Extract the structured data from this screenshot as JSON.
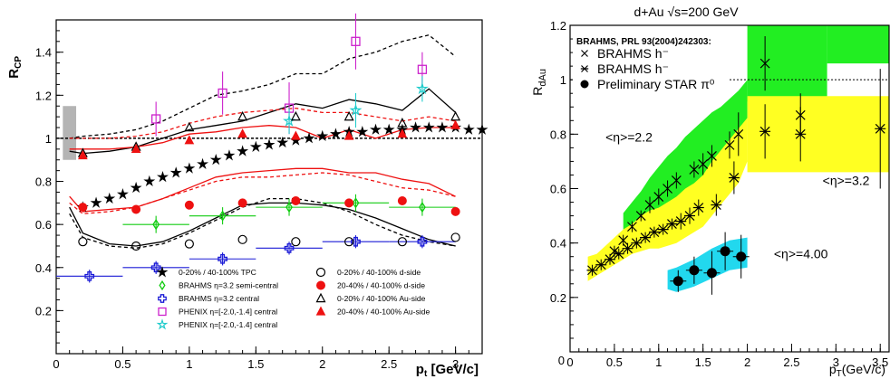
{
  "chart_data": [
    {
      "type": "scatter",
      "title": "",
      "xlabel": "p_t [GeV/c]",
      "ylabel": "R_CP",
      "xlim": [
        0,
        3.2
      ],
      "ylim": [
        0,
        1.55
      ],
      "xticks": [
        0,
        0.5,
        1,
        1.5,
        2,
        2.5,
        3
      ],
      "yticks": [
        0.2,
        0.4,
        0.6,
        0.8,
        1,
        1.2,
        1.4
      ],
      "xtick_labels": [
        "0",
        "0.5",
        "1",
        "1.5",
        "2",
        "2.5",
        "3"
      ],
      "ytick_labels": [
        "0.2",
        "0.4",
        "0.6",
        "0.8",
        "1",
        "1.2",
        "1.4"
      ],
      "reference_line": 1.0,
      "systematic_band": {
        "x": [
          0.05,
          0.15
        ],
        "y": [
          0.9,
          1.15
        ],
        "color": "#b4b4b4"
      },
      "series": [
        {
          "name": "0-20% / 40-100% TPC",
          "marker": "star",
          "color": "#000000",
          "x": [
            0.2,
            0.3,
            0.4,
            0.5,
            0.6,
            0.7,
            0.8,
            0.9,
            1.0,
            1.1,
            1.2,
            1.3,
            1.4,
            1.5,
            1.6,
            1.7,
            1.8,
            1.9,
            2.0,
            2.1,
            2.2,
            2.3,
            2.4,
            2.5,
            2.6,
            2.7,
            2.8,
            2.9,
            3.0,
            3.1,
            3.2
          ],
          "y": [
            0.68,
            0.7,
            0.72,
            0.74,
            0.77,
            0.8,
            0.82,
            0.84,
            0.86,
            0.88,
            0.9,
            0.92,
            0.94,
            0.96,
            0.97,
            0.98,
            0.99,
            1.0,
            1.01,
            1.02,
            1.03,
            1.03,
            1.04,
            1.04,
            1.04,
            1.05,
            1.05,
            1.05,
            1.05,
            1.04,
            1.04
          ]
        },
        {
          "name": "BRAHMS η=3.2 semi-central",
          "marker": "open-diamond",
          "color": "#11cc11",
          "x": [
            0.75,
            1.25,
            1.75,
            2.25,
            2.75
          ],
          "y": [
            0.6,
            0.64,
            0.68,
            0.7,
            0.68
          ],
          "xerr": 0.25,
          "yerr": 0.04
        },
        {
          "name": "BRAHMS η=3.2 central",
          "marker": "open-cross",
          "color": "#1a1ad6",
          "x": [
            0.25,
            0.75,
            1.25,
            1.75,
            2.25,
            2.75
          ],
          "y": [
            0.36,
            0.4,
            0.44,
            0.49,
            0.52,
            0.52
          ],
          "xerr": 0.25,
          "yerr": 0.03
        },
        {
          "name": "PHENIX η=[-2.0,-1.4] central",
          "marker": "open-square",
          "color": "#cc22cc",
          "x": [
            0.75,
            1.25,
            1.75,
            2.25,
            2.75
          ],
          "y": [
            1.09,
            1.21,
            1.14,
            1.45,
            1.32
          ],
          "yerr": [
            0.08,
            0.1,
            0.12,
            0.13,
            0.08
          ]
        },
        {
          "name": "PHENIX η=[-2.0,-1.4] central",
          "marker": "open-star",
          "color": "#22cccc",
          "x": [
            1.75,
            2.25,
            2.75
          ],
          "y": [
            1.08,
            1.13,
            1.23
          ],
          "yerr": [
            0.06,
            0.08,
            0.06
          ]
        },
        {
          "name": "0-20% / 40-100% d-side",
          "marker": "open-circle",
          "color": "#000000",
          "x": [
            0.2,
            0.6,
            1.0,
            1.4,
            1.8,
            2.2,
            2.6,
            3.0
          ],
          "y": [
            0.52,
            0.5,
            0.51,
            0.53,
            0.52,
            0.52,
            0.52,
            0.54
          ]
        },
        {
          "name": "20-40% / 40-100% d-side",
          "marker": "filled-circle",
          "color": "#ee1111",
          "x": [
            0.2,
            0.6,
            1.0,
            1.4,
            1.8,
            2.2,
            2.6,
            3.0
          ],
          "y": [
            0.68,
            0.67,
            0.69,
            0.7,
            0.71,
            0.7,
            0.71,
            0.66
          ]
        },
        {
          "name": "0-20% / 40-100% Au-side",
          "marker": "open-triangle",
          "color": "#000000",
          "x": [
            0.2,
            0.6,
            1.0,
            1.4,
            1.8,
            2.2,
            2.6,
            3.0
          ],
          "y": [
            0.93,
            0.96,
            1.05,
            1.1,
            1.1,
            1.1,
            1.07,
            1.1
          ]
        },
        {
          "name": "20-40% / 40-100% Au-side",
          "marker": "filled-triangle",
          "color": "#ee1111",
          "x": [
            0.2,
            0.6,
            1.0,
            1.4,
            1.8,
            2.2,
            2.6,
            3.0
          ],
          "y": [
            0.92,
            0.95,
            0.99,
            1.02,
            1.01,
            1.01,
            1.02,
            1.06
          ]
        }
      ],
      "curves": [
        {
          "style": "solid",
          "color": "#000000",
          "x": [
            0.1,
            0.2,
            0.4,
            0.6,
            0.8,
            1.0,
            1.2,
            1.4,
            1.6,
            1.8,
            2.0,
            2.2,
            2.4,
            2.6,
            2.8,
            3.0
          ],
          "y": [
            0.68,
            0.56,
            0.51,
            0.5,
            0.52,
            0.57,
            0.63,
            0.69,
            0.7,
            0.7,
            0.69,
            0.67,
            0.63,
            0.58,
            0.53,
            0.5
          ]
        },
        {
          "style": "dashed",
          "color": "#000000",
          "x": [
            0.1,
            0.2,
            0.4,
            0.6,
            0.8,
            1.0,
            1.2,
            1.4,
            1.6,
            1.8,
            2.0,
            2.2,
            2.4,
            2.6,
            2.8,
            3.0
          ],
          "y": [
            0.65,
            0.54,
            0.5,
            0.49,
            0.51,
            0.56,
            0.62,
            0.68,
            0.72,
            0.72,
            0.7,
            0.66,
            0.6,
            0.55,
            0.52,
            0.5
          ]
        },
        {
          "style": "solid",
          "color": "#ee1111",
          "x": [
            0.1,
            0.2,
            0.4,
            0.6,
            0.8,
            1.0,
            1.2,
            1.4,
            1.6,
            1.8,
            2.0,
            2.2,
            2.4,
            2.6,
            2.8,
            3.0
          ],
          "y": [
            0.73,
            0.66,
            0.67,
            0.68,
            0.72,
            0.77,
            0.82,
            0.84,
            0.85,
            0.86,
            0.86,
            0.84,
            0.84,
            0.81,
            0.79,
            0.73
          ]
        },
        {
          "style": "dashed",
          "color": "#ee1111",
          "x": [
            0.1,
            0.2,
            0.4,
            0.6,
            0.8,
            1.0,
            1.2,
            1.4,
            1.6,
            1.8,
            2.0,
            2.2,
            2.4,
            2.6,
            2.8,
            3.0
          ],
          "y": [
            0.7,
            0.65,
            0.66,
            0.68,
            0.72,
            0.76,
            0.8,
            0.82,
            0.82,
            0.83,
            0.84,
            0.83,
            0.8,
            0.77,
            0.76,
            0.73
          ]
        },
        {
          "style": "solid",
          "color": "#000000",
          "x": [
            0.1,
            0.2,
            0.4,
            0.6,
            0.8,
            1.0,
            1.2,
            1.4,
            1.6,
            1.8,
            2.0,
            2.2,
            2.4,
            2.6,
            2.8,
            3.0
          ],
          "y": [
            0.94,
            0.93,
            0.94,
            0.96,
            1.0,
            1.04,
            1.06,
            1.08,
            1.12,
            1.16,
            1.14,
            1.18,
            1.16,
            1.13,
            1.23,
            1.12
          ]
        },
        {
          "style": "dashed",
          "color": "#000000",
          "x": [
            0.1,
            0.2,
            0.4,
            0.6,
            0.8,
            1.0,
            1.2,
            1.4,
            1.6,
            1.8,
            2.0,
            2.2,
            2.4,
            2.6,
            2.8,
            3.0
          ],
          "y": [
            1.0,
            1.01,
            1.02,
            1.04,
            1.08,
            1.14,
            1.2,
            1.22,
            1.25,
            1.3,
            1.3,
            1.37,
            1.4,
            1.45,
            1.48,
            1.38
          ]
        },
        {
          "style": "solid",
          "color": "#ee1111",
          "x": [
            0.1,
            0.2,
            0.4,
            0.6,
            0.8,
            1.0,
            1.2,
            1.4,
            1.6,
            1.8,
            2.0,
            2.2,
            2.4,
            2.6,
            2.8,
            3.0
          ],
          "y": [
            0.95,
            0.95,
            0.95,
            0.96,
            0.98,
            1.02,
            1.03,
            1.05,
            1.06,
            1.05,
            1.0,
            1.04,
            1.0,
            1.04,
            1.05,
            1.05
          ]
        },
        {
          "style": "dashed",
          "color": "#ee1111",
          "x": [
            0.1,
            0.2,
            0.4,
            0.6,
            0.8,
            1.0,
            1.2,
            1.4,
            1.6,
            1.8,
            2.0,
            2.2,
            2.4,
            2.6,
            2.8,
            3.0
          ],
          "y": [
            1.0,
            1.0,
            1.0,
            1.01,
            1.03,
            1.07,
            1.1,
            1.12,
            1.13,
            1.14,
            1.12,
            1.12,
            1.1,
            1.08,
            1.1,
            1.08
          ]
        }
      ],
      "legend_left": [
        {
          "marker": "star",
          "color": "#000000",
          "label": "0-20% / 40-100% TPC"
        },
        {
          "marker": "open-diamond",
          "color": "#11cc11",
          "label": "BRAHMS η=3.2 semi-central"
        },
        {
          "marker": "open-cross",
          "color": "#1a1ad6",
          "label": "BRAHMS η=3.2 central"
        },
        {
          "marker": "open-square",
          "color": "#cc22cc",
          "label": "PHENIX η=[-2.0,-1.4] central"
        },
        {
          "marker": "open-star",
          "color": "#22cccc",
          "label": "PHENIX η=[-2.0,-1.4] central"
        }
      ],
      "legend_right": [
        {
          "marker": "open-circle",
          "color": "#000000",
          "label": "0-20% / 40-100% d-side"
        },
        {
          "marker": "filled-circle",
          "color": "#ee1111",
          "label": "20-40% / 40-100% d-side"
        },
        {
          "marker": "open-triangle",
          "color": "#000000",
          "label": "0-20% / 40-100% Au-side"
        },
        {
          "marker": "filled-triangle",
          "color": "#ee1111",
          "label": "20-40% / 40-100% Au-side"
        }
      ]
    },
    {
      "type": "scatter",
      "title": "d+Au √s=200 GeV",
      "xlabel": "p_T(GeV/c)",
      "ylabel": "R_dAu",
      "xlim": [
        0,
        3.6
      ],
      "ylim": [
        0,
        1.2
      ],
      "xticks": [
        0,
        0.5,
        1,
        1.5,
        2,
        2.5,
        3,
        3.5
      ],
      "yticks": [
        0.2,
        0.4,
        0.6,
        0.8,
        1,
        1.2
      ],
      "xtick_labels": [
        "0",
        "0.5",
        "1",
        "1.5",
        "2",
        "2.5",
        "3",
        "3.5"
      ],
      "ytick_labels": [
        "0.2",
        "0.4",
        "0.6",
        "0.8",
        "1",
        "1.2"
      ],
      "reference_line": 1.0,
      "legend_header": "BRAHMS, PRL 93(2004)242303:",
      "legend": [
        {
          "marker": "x",
          "label": "BRAHMS h⁻"
        },
        {
          "marker": "asterisk",
          "label": "BRAHMS h⁻"
        },
        {
          "marker": "filled-circle",
          "label": "Preliminary STAR π⁰"
        }
      ],
      "annotations": [
        {
          "text": "<η>=2.2",
          "x": 0.4,
          "y": 0.79
        },
        {
          "text": "<η>=3.2",
          "x": 2.85,
          "y": 0.63
        },
        {
          "text": "<η>=4.00",
          "x": 2.3,
          "y": 0.36
        }
      ],
      "bands": [
        {
          "color": "#22ee22",
          "x": [
            0.6,
            0.7,
            0.8,
            0.9,
            1.0,
            1.1,
            1.2,
            1.3,
            1.4,
            1.5,
            1.6,
            1.7,
            1.8,
            1.9,
            2.0
          ],
          "lo": [
            0.43,
            0.45,
            0.47,
            0.49,
            0.51,
            0.53,
            0.55,
            0.58,
            0.6,
            0.62,
            0.64,
            0.66,
            0.68,
            0.72,
            0.8
          ],
          "hi": [
            0.51,
            0.55,
            0.59,
            0.64,
            0.68,
            0.72,
            0.75,
            0.79,
            0.82,
            0.85,
            0.88,
            0.9,
            0.93,
            0.96,
            1.0
          ]
        },
        {
          "color": "#22ee22",
          "x": [
            2.0,
            2.9
          ],
          "lo": [
            0.92,
            0.92
          ],
          "hi": [
            1.2,
            1.2
          ]
        },
        {
          "color": "#22ee22",
          "x": [
            2.9,
            3.6
          ],
          "lo": [
            1.06,
            1.06
          ],
          "hi": [
            1.2,
            1.2
          ]
        },
        {
          "color": "#ffff22",
          "x": [
            0.2,
            0.3,
            0.4,
            0.5,
            0.6,
            0.7,
            0.8,
            0.9,
            1.0,
            1.1,
            1.2,
            1.3,
            1.4,
            1.5,
            1.6,
            1.7,
            1.8,
            1.9,
            2.0
          ],
          "lo": [
            0.26,
            0.28,
            0.3,
            0.32,
            0.34,
            0.36,
            0.37,
            0.38,
            0.38,
            0.39,
            0.4,
            0.42,
            0.44,
            0.46,
            0.5,
            0.54,
            0.58,
            0.62,
            0.7
          ],
          "hi": [
            0.35,
            0.36,
            0.39,
            0.42,
            0.45,
            0.47,
            0.5,
            0.52,
            0.53,
            0.55,
            0.57,
            0.6,
            0.62,
            0.65,
            0.7,
            0.74,
            0.78,
            0.82,
            0.86
          ]
        },
        {
          "color": "#ffff22",
          "x": [
            2.0,
            3.6
          ],
          "lo": [
            0.66,
            0.66
          ],
          "hi": [
            0.94,
            0.94
          ]
        },
        {
          "color": "#22d8ee",
          "x": [
            1.1,
            1.2,
            1.4,
            1.6,
            1.8,
            2.0
          ],
          "lo": [
            0.23,
            0.22,
            0.24,
            0.27,
            0.3,
            0.31
          ],
          "hi": [
            0.3,
            0.31,
            0.34,
            0.38,
            0.41,
            0.42
          ]
        }
      ],
      "series": [
        {
          "name": "BRAHMS h⁻",
          "marker": "x",
          "x": [
            0.5,
            0.6,
            0.7,
            0.8,
            0.9,
            1.0,
            1.1,
            1.2,
            1.4,
            1.5,
            1.6,
            1.8,
            1.9,
            2.2,
            2.6
          ],
          "y": [
            0.37,
            0.41,
            0.46,
            0.5,
            0.54,
            0.57,
            0.6,
            0.63,
            0.67,
            0.69,
            0.72,
            0.76,
            0.8,
            1.06,
            0.87
          ],
          "yerr": [
            0.02,
            0.02,
            0.02,
            0.02,
            0.03,
            0.03,
            0.03,
            0.03,
            0.03,
            0.04,
            0.04,
            0.05,
            0.08,
            0.1,
            0.08
          ]
        },
        {
          "name": "BRAHMS h⁻",
          "marker": "asterisk",
          "x": [
            0.25,
            0.35,
            0.45,
            0.55,
            0.65,
            0.75,
            0.85,
            0.95,
            1.05,
            1.15,
            1.25,
            1.35,
            1.45,
            1.65,
            1.85,
            2.2,
            2.6,
            3.5
          ],
          "y": [
            0.3,
            0.32,
            0.34,
            0.36,
            0.38,
            0.4,
            0.42,
            0.44,
            0.45,
            0.47,
            0.48,
            0.5,
            0.53,
            0.54,
            0.64,
            0.81,
            0.8,
            0.82
          ],
          "yerr": [
            0.02,
            0.02,
            0.02,
            0.02,
            0.02,
            0.02,
            0.02,
            0.02,
            0.02,
            0.02,
            0.03,
            0.03,
            0.03,
            0.04,
            0.06,
            0.1,
            0.1,
            0.22
          ]
        },
        {
          "name": "Preliminary STAR π⁰",
          "marker": "filled-circle",
          "x": [
            1.22,
            1.4,
            1.6,
            1.75,
            1.93
          ],
          "y": [
            0.26,
            0.3,
            0.29,
            0.37,
            0.35
          ],
          "yerr": [
            0.04,
            0.05,
            0.08,
            0.07,
            0.08
          ]
        }
      ]
    }
  ]
}
